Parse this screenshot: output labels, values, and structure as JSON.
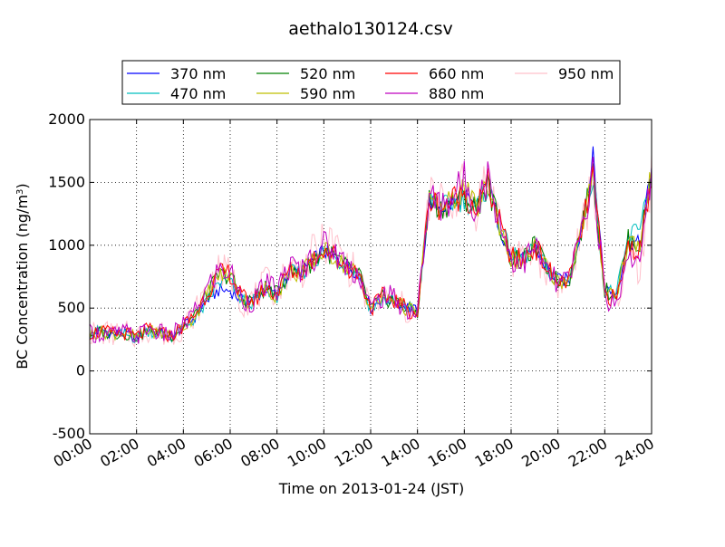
{
  "chart_data": {
    "type": "line",
    "title": "aethalo130124.csv",
    "xlabel": "Time on 2013-01-24 (JST)",
    "ylabel_main": "BC Concentration (ng/m",
    "ylabel_sup": "3",
    "ylabel_close": ")",
    "ylim": [
      -500,
      2000
    ],
    "yticks": [
      -500,
      0,
      500,
      1000,
      1500,
      2000
    ],
    "xlim_hours": [
      0,
      24
    ],
    "xticks": [
      {
        "hour": 0,
        "label": "00:00"
      },
      {
        "hour": 2,
        "label": "02:00"
      },
      {
        "hour": 4,
        "label": "04:00"
      },
      {
        "hour": 6,
        "label": "06:00"
      },
      {
        "hour": 8,
        "label": "08:00"
      },
      {
        "hour": 10,
        "label": "10:00"
      },
      {
        "hour": 12,
        "label": "12:00"
      },
      {
        "hour": 14,
        "label": "14:00"
      },
      {
        "hour": 16,
        "label": "16:00"
      },
      {
        "hour": 18,
        "label": "18:00"
      },
      {
        "hour": 20,
        "label": "20:00"
      },
      {
        "hour": 22,
        "label": "22:00"
      },
      {
        "hour": 24,
        "label": "24:00"
      }
    ],
    "grid": true,
    "legend_position": "top",
    "x_hours": [
      0,
      0.5,
      1,
      1.5,
      2,
      2.5,
      3,
      3.5,
      4,
      4.5,
      5,
      5.5,
      6,
      6.5,
      7,
      7.5,
      8,
      8.5,
      9,
      9.5,
      10,
      10.5,
      11,
      11.5,
      12,
      12.5,
      13,
      13.5,
      14,
      14.5,
      15,
      15.5,
      16,
      16.5,
      17,
      17.5,
      18,
      18.5,
      19,
      19.5,
      20,
      20.5,
      21,
      21.5,
      22,
      22.5,
      23,
      23.5,
      24
    ],
    "series": [
      {
        "name": "370 nm",
        "color": "#0000ff",
        "values": [
          280,
          330,
          290,
          300,
          260,
          330,
          300,
          280,
          350,
          430,
          560,
          640,
          640,
          560,
          560,
          660,
          600,
          790,
          780,
          870,
          960,
          900,
          840,
          780,
          500,
          580,
          560,
          520,
          470,
          1350,
          1300,
          1330,
          1380,
          1280,
          1480,
          1160,
          900,
          880,
          1000,
          820,
          720,
          730,
          1150,
          1700,
          660,
          620,
          1050,
          1000,
          1600
        ]
      },
      {
        "name": "470 nm",
        "color": "#00bfbf",
        "values": [
          300,
          320,
          280,
          290,
          260,
          320,
          290,
          270,
          330,
          420,
          540,
          700,
          700,
          560,
          550,
          650,
          600,
          780,
          770,
          860,
          950,
          890,
          830,
          770,
          490,
          570,
          550,
          500,
          480,
          1360,
          1290,
          1340,
          1370,
          1290,
          1470,
          1170,
          920,
          880,
          1010,
          820,
          720,
          740,
          1120,
          1570,
          650,
          610,
          1040,
          1180,
          1550
        ]
      },
      {
        "name": "520 nm",
        "color": "#008000",
        "values": [
          290,
          310,
          300,
          300,
          270,
          320,
          300,
          280,
          350,
          440,
          600,
          760,
          760,
          570,
          560,
          660,
          610,
          790,
          770,
          870,
          960,
          900,
          820,
          770,
          500,
          580,
          560,
          500,
          460,
          1360,
          1290,
          1350,
          1380,
          1290,
          1480,
          1170,
          890,
          870,
          1000,
          830,
          710,
          740,
          1130,
          1580,
          640,
          610,
          1040,
          1000,
          1580
        ]
      },
      {
        "name": "590 nm",
        "color": "#bfbf00",
        "values": [
          290,
          310,
          300,
          300,
          270,
          320,
          300,
          280,
          350,
          440,
          610,
          760,
          770,
          570,
          560,
          650,
          600,
          790,
          770,
          870,
          960,
          900,
          820,
          770,
          500,
          580,
          560,
          500,
          460,
          1360,
          1290,
          1350,
          1460,
          1280,
          1480,
          1170,
          890,
          870,
          1000,
          830,
          710,
          740,
          1120,
          1550,
          640,
          610,
          1030,
          1000,
          1570
        ]
      },
      {
        "name": "660 nm",
        "color": "#ff0000",
        "values": [
          300,
          310,
          300,
          300,
          270,
          330,
          300,
          280,
          360,
          450,
          620,
          770,
          780,
          580,
          560,
          660,
          620,
          800,
          780,
          880,
          980,
          910,
          830,
          770,
          500,
          590,
          570,
          500,
          450,
          1370,
          1300,
          1360,
          1420,
          1290,
          1490,
          1180,
          900,
          880,
          1000,
          830,
          700,
          740,
          1110,
          1550,
          620,
          560,
          1000,
          950,
          1580
        ]
      },
      {
        "name": "880 nm",
        "color": "#bf00bf",
        "values": [
          300,
          300,
          290,
          310,
          270,
          340,
          300,
          280,
          360,
          470,
          650,
          800,
          790,
          560,
          560,
          680,
          640,
          830,
          800,
          900,
          1010,
          940,
          840,
          780,
          490,
          600,
          580,
          490,
          460,
          1380,
          1320,
          1390,
          1520,
          1300,
          1550,
          1200,
          900,
          860,
          990,
          810,
          680,
          740,
          1110,
          1590,
          590,
          520,
          970,
          820,
          1600
        ]
      },
      {
        "name": "950 nm",
        "color": "#ffc0cb",
        "values": [
          300,
          310,
          290,
          300,
          280,
          330,
          300,
          280,
          360,
          460,
          650,
          780,
          780,
          560,
          570,
          690,
          640,
          820,
          790,
          920,
          1020,
          1000,
          840,
          760,
          480,
          590,
          580,
          480,
          450,
          1390,
          1330,
          1380,
          1460,
          1310,
          1560,
          1200,
          900,
          870,
          990,
          810,
          700,
          750,
          1090,
          1520,
          590,
          550,
          960,
          830,
          1560
        ]
      }
    ]
  }
}
